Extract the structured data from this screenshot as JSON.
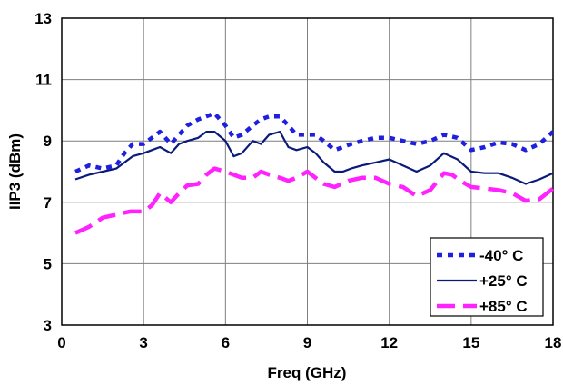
{
  "chart_data": {
    "type": "line",
    "title": "",
    "xlabel": "Freq (GHz)",
    "ylabel": "IIP3 (dBm)",
    "xlim": [
      0,
      18
    ],
    "ylim": [
      3,
      13
    ],
    "xticks": [
      "0",
      "3",
      "6",
      "9",
      "12",
      "15",
      "18"
    ],
    "yticks": [
      "3",
      "5",
      "7",
      "9",
      "11",
      "13"
    ],
    "grid": true,
    "legend_position": "bottom-right",
    "series": [
      {
        "name": "-40° C",
        "color": "#1f1fe0",
        "style": "dotted",
        "x": [
          0.5,
          1,
          1.5,
          2,
          2.3,
          2.6,
          3,
          3.3,
          3.6,
          4,
          4.3,
          4.6,
          5,
          5.3,
          5.6,
          6,
          6.3,
          6.6,
          7,
          7.3,
          7.6,
          8,
          8.3,
          8.6,
          9,
          9.3,
          9.6,
          10,
          10.3,
          10.6,
          11,
          11.5,
          12,
          12.5,
          13,
          13.5,
          14,
          14.5,
          15,
          15.5,
          16,
          16.5,
          17,
          17.5,
          18
        ],
        "y": [
          8.0,
          8.2,
          8.1,
          8.2,
          8.6,
          8.9,
          8.9,
          9.1,
          9.3,
          8.9,
          9.2,
          9.5,
          9.7,
          9.8,
          9.9,
          9.5,
          9.1,
          9.2,
          9.5,
          9.7,
          9.8,
          9.8,
          9.5,
          9.2,
          9.2,
          9.2,
          9.0,
          8.7,
          8.8,
          8.9,
          9.0,
          9.1,
          9.1,
          9.0,
          8.9,
          9.0,
          9.2,
          9.1,
          8.7,
          8.8,
          8.95,
          8.9,
          8.7,
          8.9,
          9.3
        ]
      },
      {
        "name": "+25° C",
        "color": "#0a1a7a",
        "style": "solid",
        "x": [
          0.5,
          1,
          1.5,
          2,
          2.3,
          2.6,
          3,
          3.3,
          3.6,
          4,
          4.3,
          4.6,
          5,
          5.3,
          5.6,
          6,
          6.3,
          6.6,
          7,
          7.3,
          7.6,
          8,
          8.3,
          8.6,
          9,
          9.3,
          9.6,
          10,
          10.3,
          10.6,
          11,
          11.5,
          12,
          12.5,
          13,
          13.5,
          14,
          14.5,
          15,
          15.5,
          16,
          16.5,
          17,
          17.5,
          18
        ],
        "y": [
          7.75,
          7.9,
          8.0,
          8.1,
          8.3,
          8.5,
          8.6,
          8.7,
          8.8,
          8.6,
          8.9,
          9.0,
          9.1,
          9.3,
          9.3,
          9.0,
          8.5,
          8.6,
          9.0,
          8.9,
          9.2,
          9.3,
          8.8,
          8.7,
          8.8,
          8.6,
          8.3,
          8.0,
          8.0,
          8.1,
          8.2,
          8.3,
          8.4,
          8.2,
          8.0,
          8.2,
          8.6,
          8.4,
          8.0,
          7.95,
          7.95,
          7.8,
          7.6,
          7.75,
          7.95
        ]
      },
      {
        "name": "+85° C",
        "color": "#ff22ff",
        "style": "dashed",
        "x": [
          0.5,
          1,
          1.5,
          2,
          2.5,
          3,
          3.3,
          3.6,
          4,
          4.3,
          4.6,
          5,
          5.3,
          5.6,
          6,
          6.3,
          6.6,
          7,
          7.3,
          7.6,
          8,
          8.3,
          8.6,
          9,
          9.3,
          9.6,
          10,
          10.5,
          11,
          11.5,
          12,
          12.5,
          13,
          13.5,
          14,
          14.3,
          14.6,
          15,
          15.5,
          16,
          16.5,
          17,
          17.5,
          18
        ],
        "y": [
          6.0,
          6.2,
          6.5,
          6.6,
          6.7,
          6.7,
          6.9,
          7.3,
          7.0,
          7.3,
          7.55,
          7.6,
          7.9,
          8.1,
          8.0,
          7.9,
          7.8,
          7.8,
          8.0,
          7.9,
          7.8,
          7.7,
          7.8,
          8.0,
          7.8,
          7.6,
          7.5,
          7.7,
          7.8,
          7.8,
          7.6,
          7.5,
          7.2,
          7.4,
          7.95,
          7.9,
          7.7,
          7.5,
          7.45,
          7.4,
          7.3,
          7.05,
          7.1,
          7.45
        ]
      }
    ]
  }
}
